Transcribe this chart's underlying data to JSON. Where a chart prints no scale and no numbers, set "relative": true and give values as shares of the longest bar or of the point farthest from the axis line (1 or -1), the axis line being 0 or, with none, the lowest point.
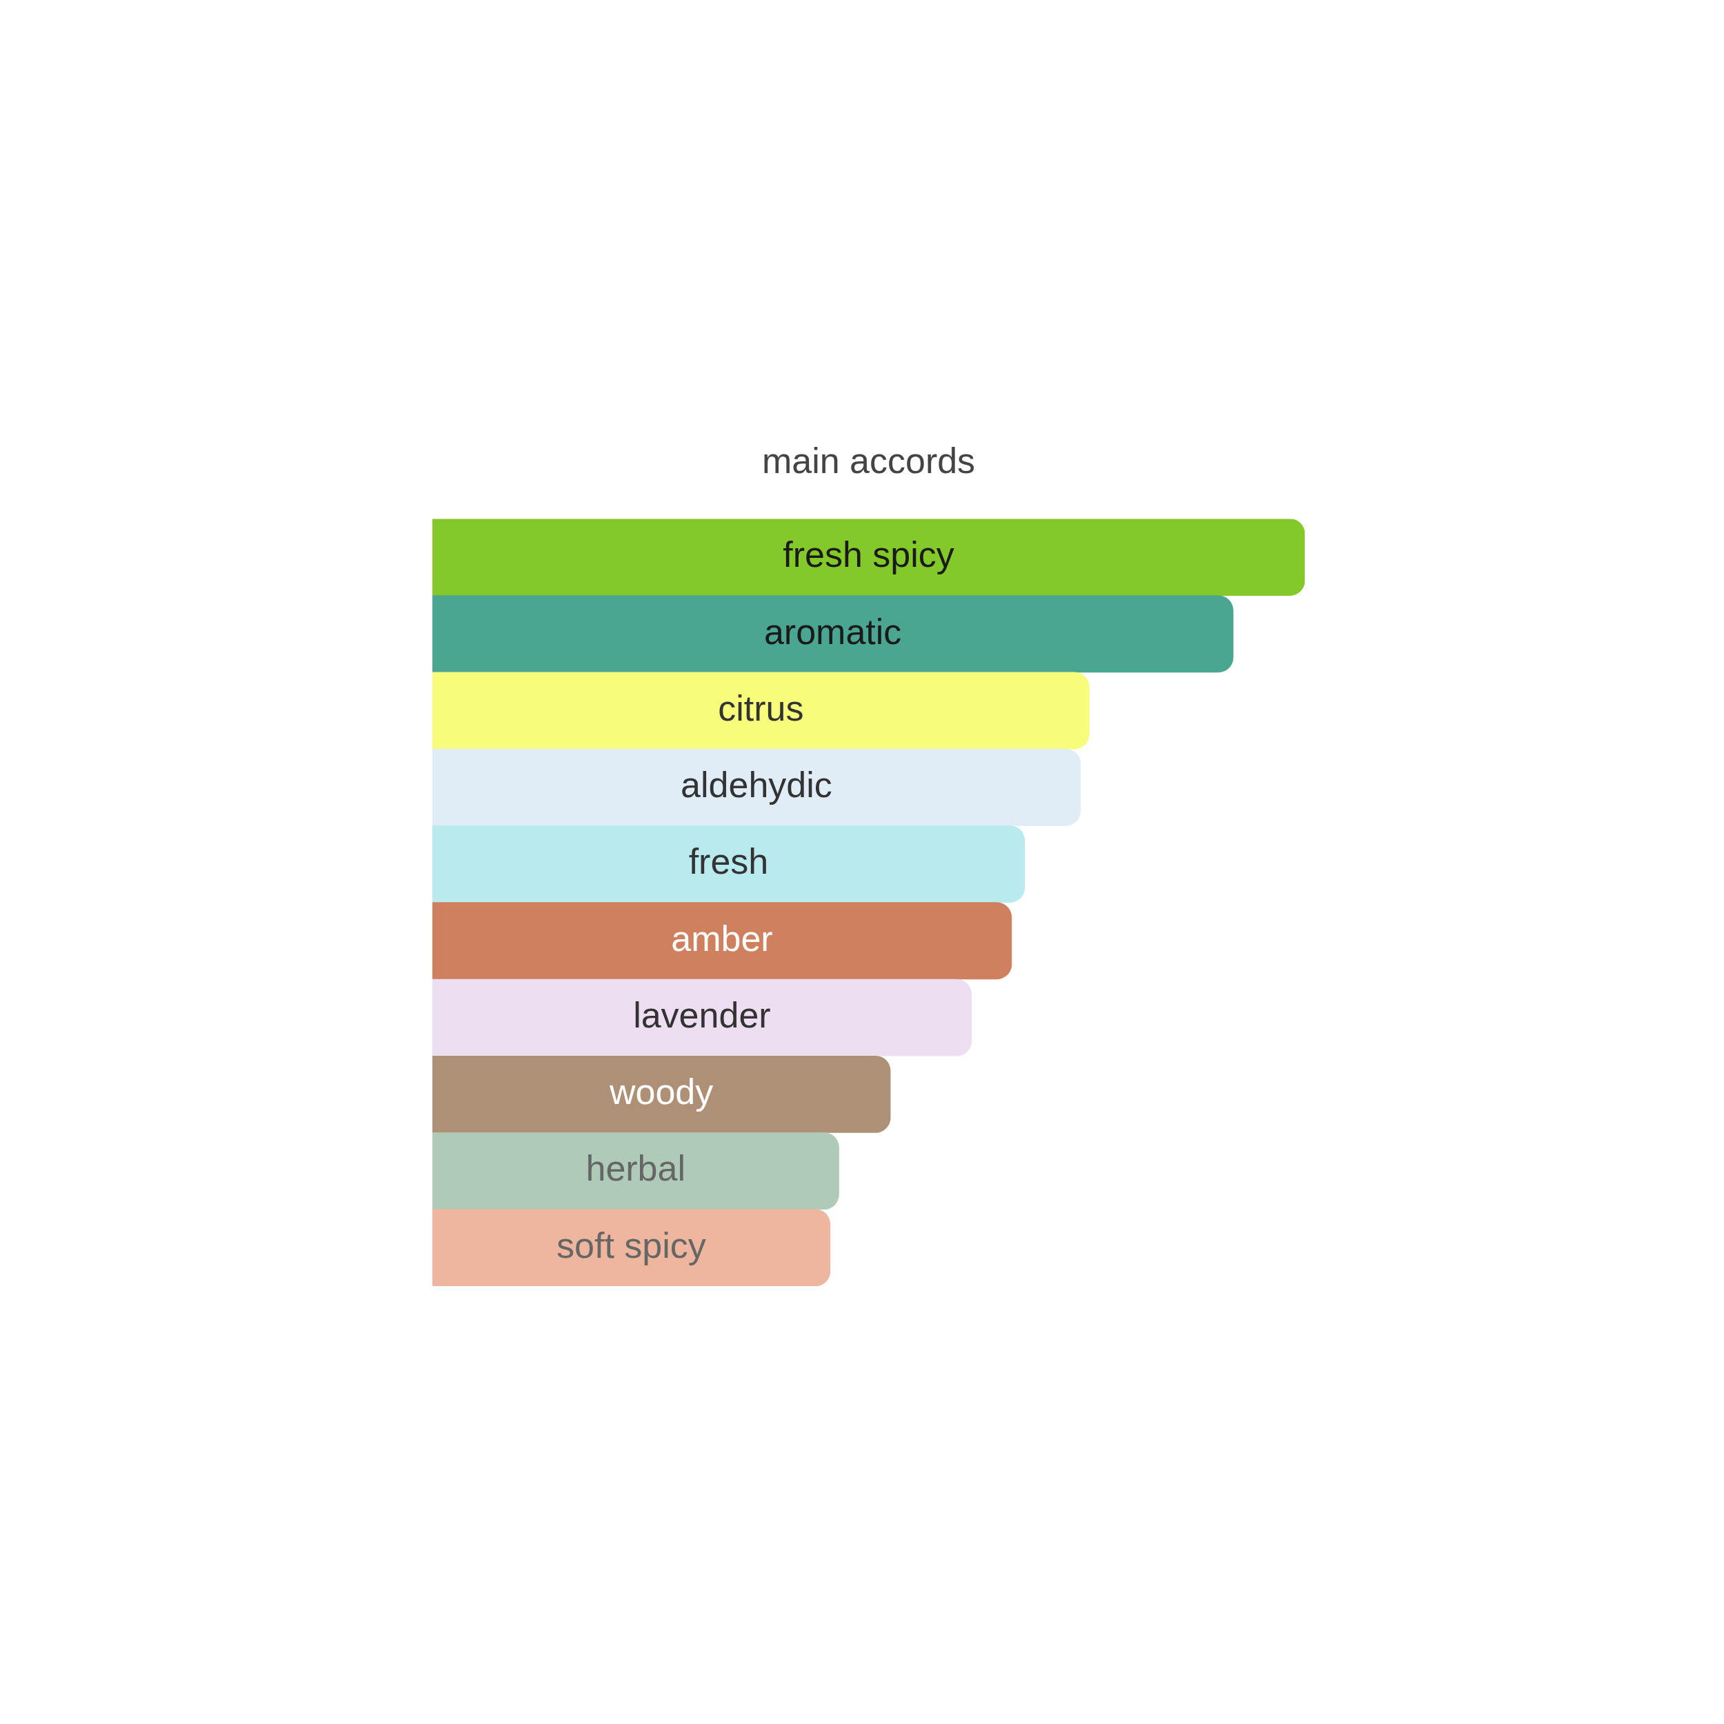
{
  "chart_data": {
    "type": "bar",
    "orientation": "horizontal",
    "relative": true,
    "title": "main accords",
    "categories": [
      "fresh spicy",
      "aromatic",
      "citrus",
      "aldehydic",
      "fresh",
      "amber",
      "lavender",
      "woody",
      "herbal",
      "soft spicy"
    ],
    "values": [
      1,
      0.918,
      0.753,
      0.743,
      0.679,
      0.664,
      0.618,
      0.525,
      0.466,
      0.456
    ],
    "colors": [
      "#84c92a",
      "#4aa690",
      "#f7fc7b",
      "#e0edf7",
      "#b8eaee",
      "#cf805e",
      "#eedef1",
      "#ad9075",
      "#afcbb7",
      "#eeb59f"
    ],
    "legend": false
  }
}
